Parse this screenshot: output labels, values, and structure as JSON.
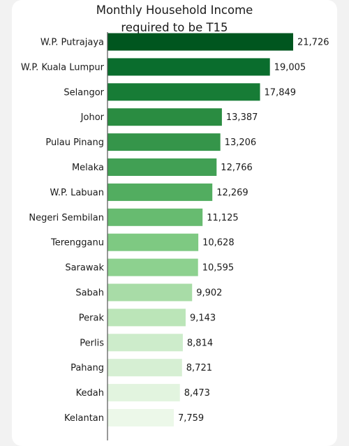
{
  "chart_data": {
    "type": "bar",
    "orientation": "horizontal",
    "title_lines": [
      "Monthly Household Income",
      "required to be T15"
    ],
    "xlabel": "",
    "ylabel": "",
    "grid": false,
    "categories": [
      "W.P. Putrajaya",
      "W.P. Kuala Lumpur",
      "Selangor",
      "Johor",
      "Pulau Pinang",
      "Melaka",
      "W.P. Labuan",
      "Negeri Sembilan",
      "Terengganu",
      "Sarawak",
      "Sabah",
      "Perak",
      "Perlis",
      "Pahang",
      "Kedah",
      "Kelantan"
    ],
    "values": [
      21726,
      19005,
      17849,
      13387,
      13206,
      12766,
      12269,
      11125,
      10628,
      10595,
      9902,
      9143,
      8814,
      8721,
      8473,
      7759
    ],
    "value_labels": [
      "21,726",
      "19,005",
      "17,849",
      "13,387",
      "13,206",
      "12,766",
      "12,269",
      "11,125",
      "10,628",
      "10,595",
      "9,902",
      "9,143",
      "8,814",
      "8,721",
      "8,473",
      "7,759"
    ],
    "colors": [
      "#00561f",
      "#0a6d2d",
      "#177c36",
      "#2a8c41",
      "#35954a",
      "#41a054",
      "#52ad60",
      "#67bb70",
      "#7ec982",
      "#8dd18f",
      "#a8dca7",
      "#bbe5b8",
      "#cdeccb",
      "#d6efd3",
      "#e2f4df",
      "#ecf8e9"
    ]
  }
}
